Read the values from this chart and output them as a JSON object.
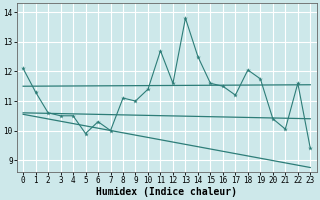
{
  "xlabel": "Humidex (Indice chaleur)",
  "xlim": [
    -0.5,
    23.5
  ],
  "ylim": [
    8.6,
    14.3
  ],
  "yticks": [
    9,
    10,
    11,
    12,
    13,
    14
  ],
  "xticks": [
    0,
    1,
    2,
    3,
    4,
    5,
    6,
    7,
    8,
    9,
    10,
    11,
    12,
    13,
    14,
    15,
    16,
    17,
    18,
    19,
    20,
    21,
    22,
    23
  ],
  "bg_color": "#cde8ea",
  "line_color": "#2d7d78",
  "grid_color": "#ffffff",
  "line1_x": [
    0,
    1,
    2,
    3,
    4,
    5,
    6,
    7,
    8,
    9,
    10,
    11,
    12,
    13,
    14,
    15,
    16,
    17,
    18,
    19,
    20,
    21,
    22,
    23
  ],
  "line1_y": [
    12.1,
    11.3,
    10.6,
    10.5,
    10.5,
    9.9,
    10.3,
    10.0,
    11.1,
    11.0,
    11.4,
    12.7,
    11.6,
    13.8,
    12.5,
    11.6,
    11.5,
    11.2,
    12.05,
    11.75,
    10.4,
    10.05,
    11.6,
    9.4
  ],
  "line2_x": [
    0,
    23
  ],
  "line2_y": [
    11.5,
    11.55
  ],
  "line3_x": [
    0,
    23
  ],
  "line3_y": [
    10.6,
    10.4
  ],
  "line4_x": [
    0,
    23
  ],
  "line4_y": [
    10.55,
    8.75
  ]
}
